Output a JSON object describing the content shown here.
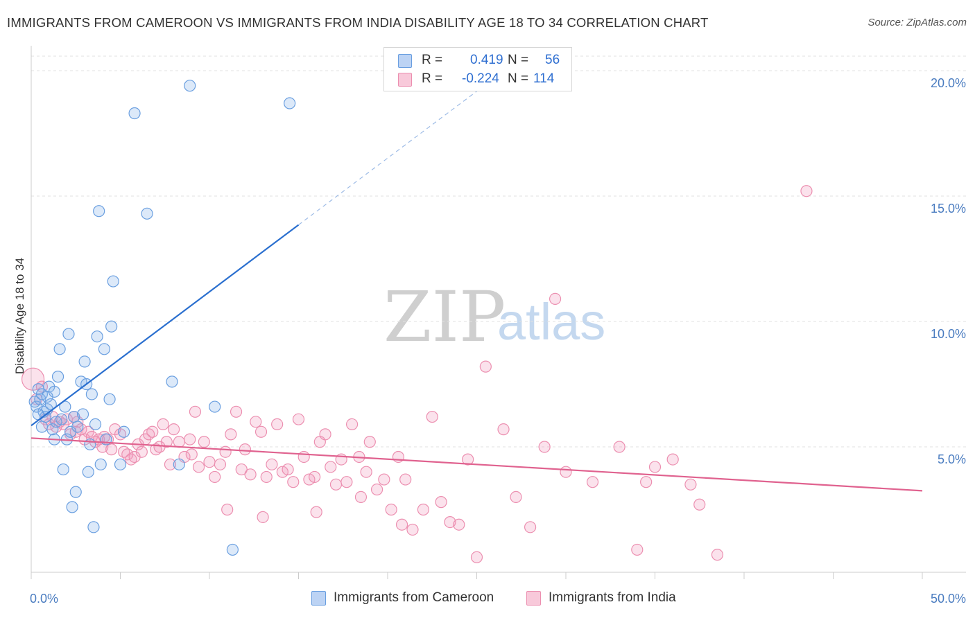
{
  "header": {
    "title": "IMMIGRANTS FROM CAMEROON VS IMMIGRANTS FROM INDIA DISABILITY AGE 18 TO 34 CORRELATION CHART",
    "source": "Source: ZipAtlas.com"
  },
  "watermark": {
    "zip": "ZIP",
    "atlas": "atlas"
  },
  "legend": {
    "r_label": "R =",
    "n_label": "N =",
    "rows": [
      {
        "r": "0.419",
        "n": "56"
      },
      {
        "r": "-0.224",
        "n": "114"
      }
    ]
  },
  "chart_data": {
    "type": "scatter",
    "title": "IMMIGRANTS FROM CAMEROON VS IMMIGRANTS FROM INDIA DISABILITY AGE 18 TO 34 CORRELATION CHART",
    "xlabel": "",
    "ylabel": "Disability Age 18 to 34",
    "xlim": [
      0,
      50
    ],
    "ylim": [
      0,
      20.8
    ],
    "x_tick_labels": [
      "0.0%",
      "50.0%"
    ],
    "y_ticks": [
      5,
      10,
      15,
      20
    ],
    "y_tick_labels": [
      "5.0%",
      "10.0%",
      "15.0%",
      "20.0%"
    ],
    "grid": "horizontal dashed",
    "legend_position": "top-center",
    "series": [
      {
        "name": "Immigrants from Cameroon",
        "color": "#6a9fe0",
        "line_color": "#2a6fcf",
        "r": 0.419,
        "n": 56,
        "trend": {
          "x0": 0,
          "y0": 5.85,
          "x1": 15,
          "y1": 13.85,
          "dash_to_x": 25.7,
          "dash_to_y": 19.55
        },
        "points": [
          [
            0.2,
            6.8
          ],
          [
            0.3,
            6.6
          ],
          [
            0.4,
            7.3
          ],
          [
            0.5,
            6.9
          ],
          [
            0.6,
            7.1
          ],
          [
            0.7,
            6.4
          ],
          [
            0.8,
            6.2
          ],
          [
            0.9,
            6.5
          ],
          [
            1.0,
            7.4
          ],
          [
            1.2,
            5.7
          ],
          [
            1.3,
            5.3
          ],
          [
            1.4,
            6.0
          ],
          [
            1.5,
            7.8
          ],
          [
            1.6,
            8.9
          ],
          [
            1.8,
            4.1
          ],
          [
            1.9,
            6.6
          ],
          [
            2.0,
            5.3
          ],
          [
            2.1,
            9.5
          ],
          [
            2.3,
            2.6
          ],
          [
            2.4,
            6.2
          ],
          [
            2.5,
            3.2
          ],
          [
            2.8,
            7.6
          ],
          [
            3.0,
            8.4
          ],
          [
            3.1,
            7.5
          ],
          [
            3.2,
            4.0
          ],
          [
            3.3,
            5.1
          ],
          [
            3.4,
            7.1
          ],
          [
            3.5,
            1.8
          ],
          [
            3.7,
            9.4
          ],
          [
            3.8,
            14.4
          ],
          [
            3.9,
            4.3
          ],
          [
            4.1,
            8.9
          ],
          [
            4.2,
            5.3
          ],
          [
            4.4,
            6.9
          ],
          [
            4.5,
            9.8
          ],
          [
            4.6,
            11.6
          ],
          [
            5.0,
            4.3
          ],
          [
            5.2,
            5.6
          ],
          [
            5.8,
            18.3
          ],
          [
            6.5,
            14.3
          ],
          [
            7.9,
            7.6
          ],
          [
            8.3,
            4.3
          ],
          [
            8.9,
            19.4
          ],
          [
            10.3,
            6.6
          ],
          [
            11.3,
            0.9
          ],
          [
            14.5,
            18.7
          ],
          [
            0.6,
            5.8
          ],
          [
            1.1,
            6.7
          ],
          [
            2.6,
            5.8
          ],
          [
            3.6,
            5.9
          ],
          [
            0.9,
            7.0
          ],
          [
            1.7,
            6.1
          ],
          [
            2.2,
            5.6
          ],
          [
            0.4,
            6.3
          ],
          [
            1.3,
            7.2
          ],
          [
            2.9,
            6.3
          ]
        ]
      },
      {
        "name": "Immigrants from India",
        "color": "#ec8fb0",
        "line_color": "#e0628f",
        "r": -0.224,
        "n": 114,
        "trend": {
          "x0": 0,
          "y0": 5.35,
          "x1": 50,
          "y1": 3.25
        },
        "points": [
          [
            0.1,
            7.7
          ],
          [
            0.3,
            6.9
          ],
          [
            0.6,
            7.4
          ],
          [
            0.8,
            6.1
          ],
          [
            1.0,
            5.9
          ],
          [
            1.2,
            6.2
          ],
          [
            1.4,
            5.8
          ],
          [
            1.6,
            6.0
          ],
          [
            1.8,
            5.9
          ],
          [
            2.0,
            6.1
          ],
          [
            2.2,
            5.5
          ],
          [
            2.4,
            6.2
          ],
          [
            2.6,
            6.0
          ],
          [
            2.8,
            5.7
          ],
          [
            3.0,
            5.3
          ],
          [
            3.2,
            5.6
          ],
          [
            3.4,
            5.4
          ],
          [
            3.6,
            5.2
          ],
          [
            3.8,
            5.3
          ],
          [
            4.0,
            5.0
          ],
          [
            4.3,
            5.3
          ],
          [
            4.5,
            4.9
          ],
          [
            4.7,
            5.7
          ],
          [
            5.0,
            5.5
          ],
          [
            5.2,
            4.8
          ],
          [
            5.4,
            4.7
          ],
          [
            5.6,
            4.5
          ],
          [
            5.8,
            4.6
          ],
          [
            6.0,
            5.1
          ],
          [
            6.2,
            4.8
          ],
          [
            6.4,
            5.3
          ],
          [
            6.6,
            5.5
          ],
          [
            6.8,
            5.6
          ],
          [
            7.0,
            4.9
          ],
          [
            7.2,
            5.0
          ],
          [
            7.4,
            5.9
          ],
          [
            7.6,
            5.2
          ],
          [
            7.8,
            4.3
          ],
          [
            8.0,
            5.7
          ],
          [
            8.3,
            5.2
          ],
          [
            8.6,
            4.6
          ],
          [
            8.9,
            5.3
          ],
          [
            9.2,
            6.4
          ],
          [
            9.4,
            4.2
          ],
          [
            9.7,
            5.2
          ],
          [
            10.0,
            4.4
          ],
          [
            10.3,
            3.8
          ],
          [
            10.6,
            4.3
          ],
          [
            10.9,
            4.8
          ],
          [
            11.2,
            5.5
          ],
          [
            11.5,
            6.4
          ],
          [
            11.8,
            4.1
          ],
          [
            12.0,
            4.9
          ],
          [
            12.3,
            3.9
          ],
          [
            12.6,
            6.0
          ],
          [
            12.9,
            5.6
          ],
          [
            13.2,
            3.8
          ],
          [
            13.5,
            4.3
          ],
          [
            13.8,
            5.9
          ],
          [
            14.1,
            4.0
          ],
          [
            14.4,
            4.1
          ],
          [
            14.7,
            3.6
          ],
          [
            15.0,
            6.1
          ],
          [
            15.3,
            4.6
          ],
          [
            15.6,
            3.7
          ],
          [
            15.9,
            3.8
          ],
          [
            16.2,
            5.2
          ],
          [
            16.5,
            5.5
          ],
          [
            16.8,
            4.2
          ],
          [
            17.1,
            3.5
          ],
          [
            17.4,
            4.5
          ],
          [
            17.7,
            3.6
          ],
          [
            18.0,
            5.9
          ],
          [
            18.4,
            4.6
          ],
          [
            18.8,
            4.0
          ],
          [
            19.0,
            5.2
          ],
          [
            19.4,
            3.3
          ],
          [
            19.8,
            3.7
          ],
          [
            20.2,
            2.5
          ],
          [
            20.6,
            4.6
          ],
          [
            21.0,
            3.7
          ],
          [
            21.4,
            1.7
          ],
          [
            22.0,
            2.5
          ],
          [
            22.5,
            6.2
          ],
          [
            23.0,
            2.8
          ],
          [
            23.5,
            2.0
          ],
          [
            24.0,
            1.9
          ],
          [
            24.5,
            4.5
          ],
          [
            25.0,
            0.6
          ],
          [
            26.5,
            5.7
          ],
          [
            27.2,
            3.0
          ],
          [
            28.0,
            1.8
          ],
          [
            28.8,
            5.0
          ],
          [
            29.4,
            10.9
          ],
          [
            30.0,
            4.0
          ],
          [
            31.5,
            3.6
          ],
          [
            33.0,
            5.0
          ],
          [
            34.0,
            0.9
          ],
          [
            34.5,
            3.6
          ],
          [
            35.0,
            4.2
          ],
          [
            36.0,
            4.5
          ],
          [
            37.0,
            3.5
          ],
          [
            37.5,
            2.7
          ],
          [
            38.5,
            0.7
          ],
          [
            43.5,
            15.2
          ],
          [
            25.5,
            8.2
          ],
          [
            11.0,
            2.5
          ],
          [
            13.0,
            2.2
          ],
          [
            16.0,
            2.4
          ],
          [
            18.5,
            3.0
          ],
          [
            2.5,
            5.6
          ],
          [
            4.1,
            5.4
          ],
          [
            9.0,
            4.7
          ],
          [
            20.8,
            1.9
          ]
        ]
      }
    ]
  },
  "bottom_legend": [
    "Immigrants from Cameroon",
    "Immigrants from India"
  ],
  "colors": {
    "accent": "#2a6fcf",
    "pink": "#e0628f",
    "tick": "#4a7cc0",
    "grid": "#e0e0e0"
  }
}
